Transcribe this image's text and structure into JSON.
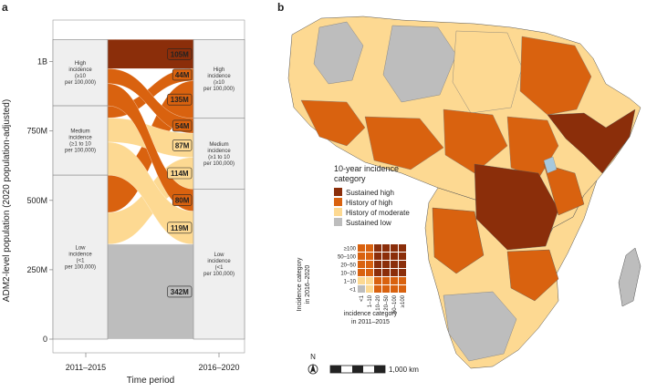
{
  "panel_a": {
    "label": "a",
    "ylabel": "ADM2-level population (2020 population-adjusted)",
    "xlabel": "Time period",
    "x_ticks": [
      "2011–2015",
      "2016–2020"
    ],
    "left_categories": [
      {
        "lines": [
          "High",
          "incidence",
          "(≥10",
          "per 100,000)"
        ]
      },
      {
        "lines": [
          "Medium",
          "incidence",
          "(≥1 to 10",
          "per 100,000)"
        ]
      },
      {
        "lines": [
          "Low",
          "incidence",
          "(<1",
          "per 100,000)"
        ]
      }
    ],
    "right_categories": [
      {
        "lines": [
          "High",
          "incidence",
          "(≥10",
          "per 100,000)"
        ]
      },
      {
        "lines": [
          "Medium",
          "incidence",
          "(≥1 to 10",
          "per 100,000)"
        ]
      },
      {
        "lines": [
          "Low",
          "incidence",
          "(<1",
          "per 100,000)"
        ]
      }
    ]
  },
  "chart_data": {
    "type": "sankey",
    "ylim": [
      0,
      1150
    ],
    "y_ticks": [
      {
        "value": 0,
        "label": "0"
      },
      {
        "value": 250,
        "label": "250M"
      },
      {
        "value": 500,
        "label": "500M"
      },
      {
        "value": 750,
        "label": "750M"
      },
      {
        "value": 1000,
        "label": "1B"
      }
    ],
    "flows": [
      {
        "from": "High",
        "to": "High",
        "value": 105,
        "label": "105M",
        "category": "Sustained high"
      },
      {
        "from": "Medium",
        "to": "High",
        "value": 44,
        "label": "44M",
        "category": "History of high"
      },
      {
        "from": "Low",
        "to": "High",
        "value": 135,
        "label": "135M",
        "category": "History of high"
      },
      {
        "from": "High",
        "to": "Medium",
        "value": 54,
        "label": "54M",
        "category": "History of high"
      },
      {
        "from": "Medium",
        "to": "Medium",
        "value": 87,
        "label": "87M",
        "category": "History of moderate"
      },
      {
        "from": "Low",
        "to": "Medium",
        "value": 114,
        "label": "114M",
        "category": "History of moderate"
      },
      {
        "from": "High",
        "to": "Low",
        "value": 80,
        "label": "80M",
        "category": "History of high"
      },
      {
        "from": "Medium",
        "to": "Low",
        "value": 119,
        "label": "119M",
        "category": "History of moderate"
      },
      {
        "from": "Low",
        "to": "Low",
        "value": 342,
        "label": "342M",
        "category": "Sustained low"
      }
    ]
  },
  "panel_b": {
    "label": "b",
    "legend_title": [
      "10-year incidence",
      "category"
    ],
    "legend_items": [
      {
        "label": "Sustained high",
        "color": "#8b2e0a"
      },
      {
        "label": "History of high",
        "color": "#d9620f"
      },
      {
        "label": "History of moderate",
        "color": "#fdd992"
      },
      {
        "label": "Sustained low",
        "color": "#bdbdbd"
      }
    ],
    "grid_y_label": [
      "Incidence category",
      "in 2016–2020"
    ],
    "grid_x_label": [
      "incidence category",
      "in 2011–2015"
    ],
    "grid_labels": [
      "<1",
      "1–10",
      "10–20",
      "20–50",
      "50–100",
      "≥100"
    ],
    "north": "N",
    "scale_label": "1,000 km"
  },
  "colors": {
    "sustained_high": "#8b2e0a",
    "history_high": "#d9620f",
    "history_moderate": "#fdd992",
    "sustained_low": "#bdbdbd",
    "panel_bg": "#efefef",
    "sea": "#ffffff"
  }
}
